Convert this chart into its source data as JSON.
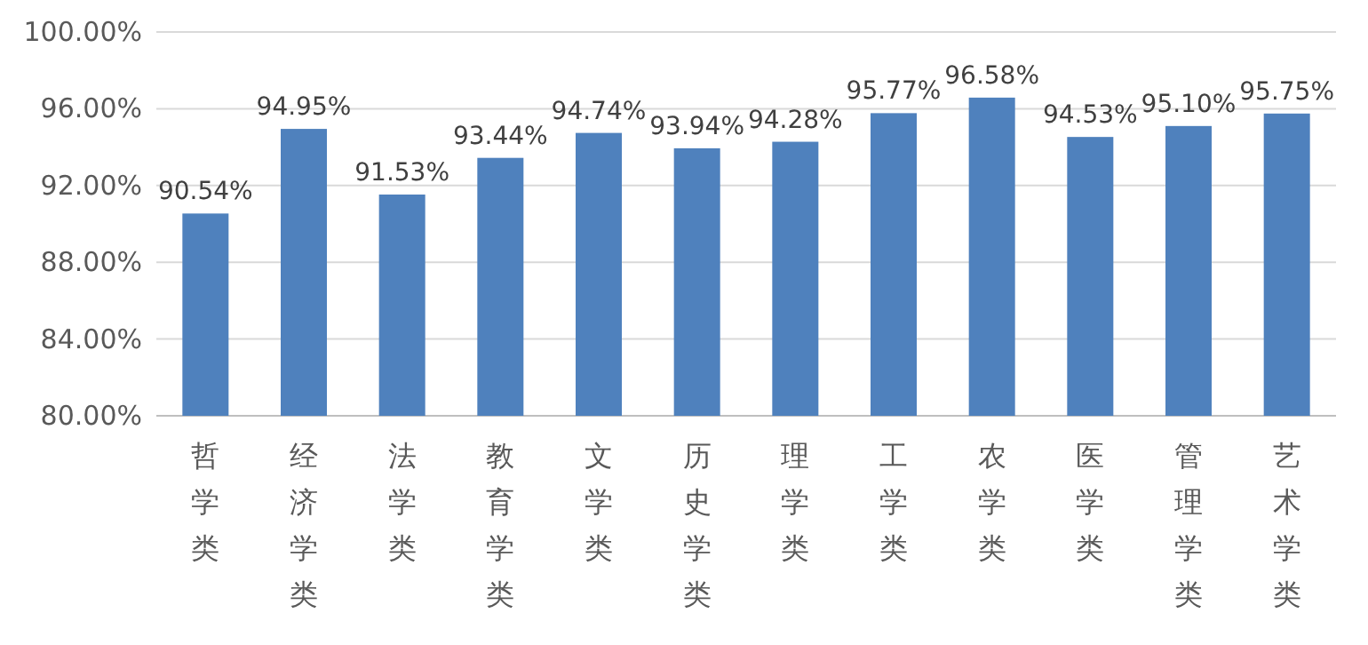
{
  "chart_data": {
    "type": "bar",
    "categories": [
      "哲学类",
      "经济学类",
      "法学类",
      "教育学类",
      "文学类",
      "历史学类",
      "理学类",
      "工学类",
      "农学类",
      "医学类",
      "管理学类",
      "艺术学类"
    ],
    "values": [
      90.54,
      94.95,
      91.53,
      93.44,
      94.74,
      93.94,
      94.28,
      95.77,
      96.58,
      94.53,
      95.1,
      95.75
    ],
    "value_labels": [
      "90.54%",
      "94.95%",
      "91.53%",
      "93.44%",
      "94.74%",
      "93.94%",
      "94.28%",
      "95.77%",
      "96.58%",
      "94.53%",
      "95.10%",
      "95.75%"
    ],
    "color": "#4f81bd",
    "ylim": [
      80,
      100
    ],
    "yticks": [
      {
        "value": 80,
        "label": "80.00%"
      },
      {
        "value": 84,
        "label": "84.00%"
      },
      {
        "value": 88,
        "label": "88.00%"
      },
      {
        "value": 92,
        "label": "92.00%"
      },
      {
        "value": 96,
        "label": "96.00%"
      },
      {
        "value": 100,
        "label": "100.00%"
      }
    ],
    "grid": "y"
  }
}
